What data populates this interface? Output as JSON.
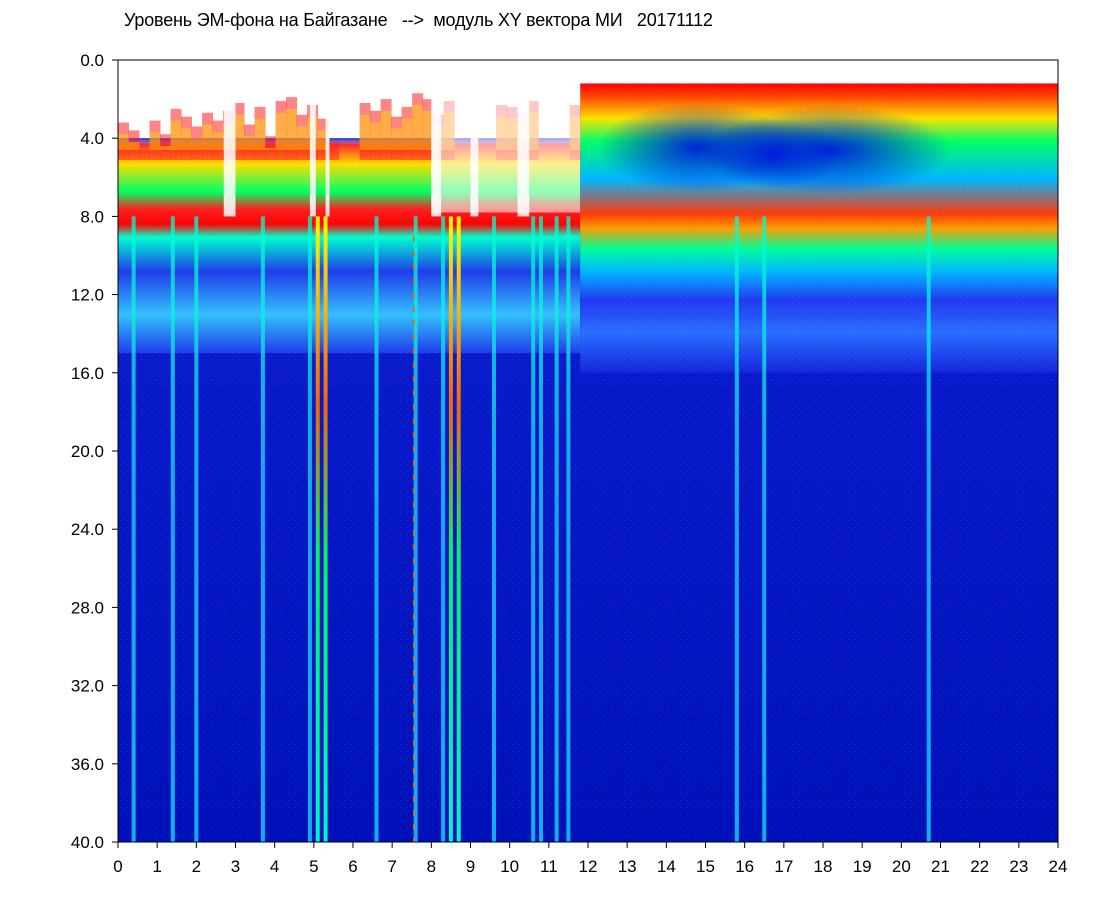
{
  "chart_data": {
    "type": "heatmap",
    "title": "Уровень ЭМ-фона на Байгазане   -->  модуль XY вектора МИ   20171112",
    "xlabel": "",
    "ylabel": "",
    "x_ticks": [
      "0",
      "1",
      "2",
      "3",
      "4",
      "5",
      "6",
      "7",
      "8",
      "9",
      "10",
      "11",
      "12",
      "13",
      "14",
      "15",
      "16",
      "17",
      "18",
      "19",
      "20",
      "21",
      "22",
      "23",
      "24"
    ],
    "y_ticks": [
      "0.0",
      "4.0",
      "8.0",
      "12.0",
      "16.0",
      "20.0",
      "24.0",
      "28.0",
      "32.0",
      "36.0",
      "40.0"
    ],
    "xlim": [
      0,
      24
    ],
    "ylim": [
      0,
      40
    ],
    "y_inverted": true,
    "grid": false,
    "colormap": [
      "#0000c8",
      "#0a2ee0",
      "#00e0ff",
      "#00ff80",
      "#ffff00",
      "#ff0000"
    ],
    "regions": [
      {
        "x": [
          0,
          11.8
        ],
        "signal_top_y": 4.0,
        "band_bottom_y": 15.0,
        "note": "active band with red/yellow noise ceiling"
      },
      {
        "x": [
          11.8,
          24
        ],
        "signal_top_y": 1.2,
        "band_bottom_y": 16.0,
        "note": "intense green/cyan band with red ceiling"
      }
    ],
    "vertical_spikes_x": [
      0.4,
      1.4,
      2.0,
      3.7,
      4.9,
      5.1,
      5.3,
      6.6,
      7.6,
      8.3,
      8.5,
      8.7,
      9.6,
      10.6,
      10.8,
      11.2,
      11.5,
      15.8,
      16.5,
      20.7
    ]
  }
}
